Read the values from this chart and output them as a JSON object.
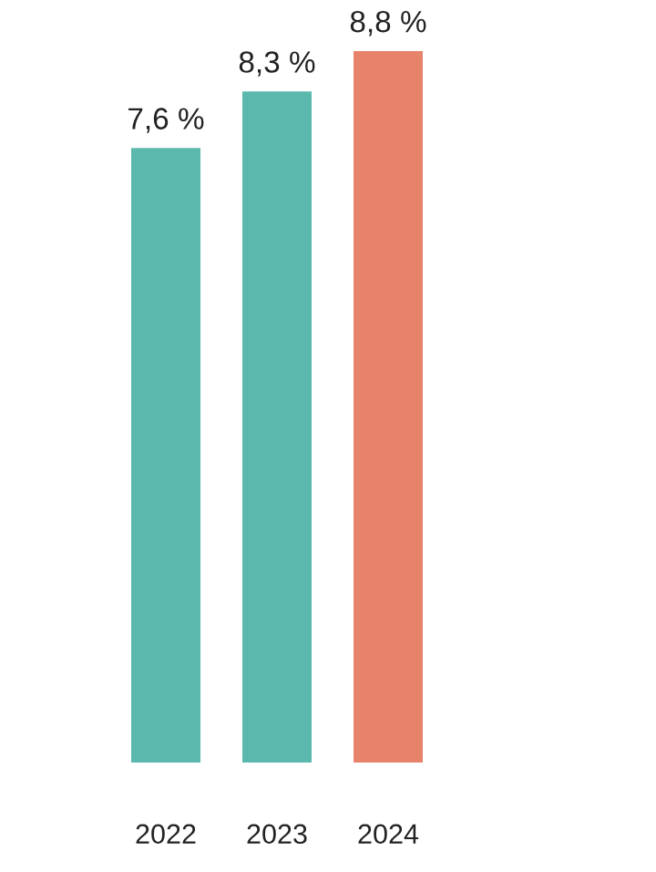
{
  "chart_data": {
    "type": "bar",
    "categories": [
      "2022",
      "2023",
      "2024"
    ],
    "values": [
      7.6,
      8.3,
      8.8
    ],
    "colors": [
      "#5bb8ad",
      "#5bb8ad",
      "#e8836b"
    ],
    "value_labels": [
      "7,6 %",
      "8,3 %",
      "8,8 %"
    ],
    "ylim": [
      0,
      8.8
    ],
    "grid": false,
    "legend": false
  }
}
